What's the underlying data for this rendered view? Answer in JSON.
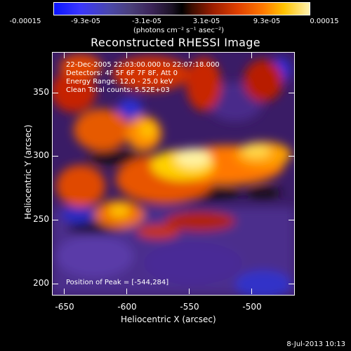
{
  "colorbar": {
    "ticks": [
      "-0.00015",
      "-9.3e-05",
      "-3.1e-05",
      "3.1e-05",
      "9.3e-05",
      "0.00015"
    ],
    "units": "(photons cm⁻² s⁻¹ asec⁻²)"
  },
  "title": "Reconstructed RHESSI Image",
  "annotations": {
    "time_range": "22-Dec-2005 22:03:00.000 to 22:07:18.000",
    "detectors": "Detectors: 4F 5F 6F 7F 8F, Att 0",
    "energy": "Energy Range: 12.0 - 25.0 keV",
    "method": "Clean     Total counts: 5.52E+03",
    "peak": "Position of Peak = [-544,284]"
  },
  "axes": {
    "xlabel": "Heliocentric X (arcsec)",
    "ylabel": "Heliocentric Y (arcsec)",
    "xticks": [
      "-650",
      "-600",
      "-550",
      "-500"
    ],
    "yticks": [
      "350",
      "300",
      "250",
      "200"
    ]
  },
  "footer": {
    "date": "8-Jul-2013 10:13"
  }
}
